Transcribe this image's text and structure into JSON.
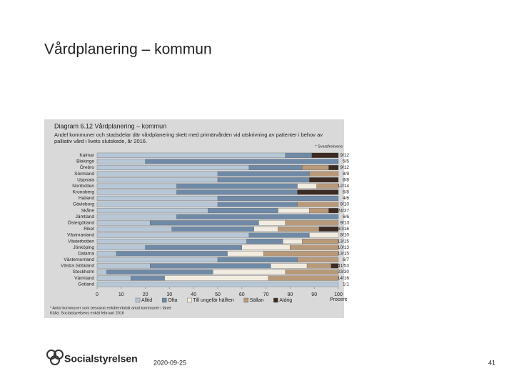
{
  "slide": {
    "title": "Vårdplanering – kommun",
    "logo_text": "Socialstyrelsen",
    "date": "2020-09-25",
    "page_number": "41"
  },
  "chart_data": {
    "type": "stacked-bar-horizontal",
    "title": "Diagram 6.12 Vårdplanering – kommun",
    "subtitle": "Andel kommuner och stadsdelar där vårdplanering skett med primärvården vid utskrivning av patienter i behov av palliativ vård i livets slutskede, år 2016.",
    "response_note": "* Svarsfrekvens",
    "categories": [
      "Kalmar",
      "Blekinge",
      "Örebro",
      "Sörmland",
      "Uppsala",
      "Norrbotten",
      "Kronoberg",
      "Halland",
      "Gävleborg",
      "Skåne",
      "Jämtland",
      "Östergötland",
      "Riket",
      "Västmanland",
      "Västerbotten",
      "Jönköping",
      "Dalarna",
      "Västernorrland",
      "Västra Götaland",
      "Stockholm",
      "Värmland",
      "Gotland"
    ],
    "response_rates": [
      "9/12",
      "5/5",
      "9/12",
      "8/9",
      "8/8",
      "12/14",
      "6/8",
      "4/6",
      "9/10",
      "24/37",
      "6/6",
      "9/13",
      "236/316",
      "8/10",
      "13/15",
      "10/13",
      "13/15",
      "6/7",
      "41/53",
      "23/30",
      "14/16",
      "1/1"
    ],
    "series": [
      {
        "name": "Alltid",
        "color": "#b8c7d6",
        "values": [
          78,
          20,
          63,
          50,
          50,
          33,
          33,
          50,
          50,
          46,
          33,
          22,
          31,
          63,
          62,
          20,
          8,
          50,
          22,
          4,
          14,
          100
        ]
      },
      {
        "name": "Ofta",
        "color": "#6f8aa6",
        "values": [
          11,
          80,
          22,
          38,
          38,
          50,
          50,
          50,
          33,
          29,
          67,
          45,
          34,
          25,
          15,
          40,
          46,
          33,
          50,
          44,
          14,
          0
        ]
      },
      {
        "name": "Till ungefär hälften",
        "color": "#f2ece0",
        "values": [
          0,
          0,
          0,
          0,
          0,
          8,
          0,
          0,
          0,
          13,
          0,
          11,
          10,
          12,
          8,
          20,
          15,
          0,
          15,
          30,
          43,
          0
        ]
      },
      {
        "name": "Sällan",
        "color": "#b89a7a",
        "values": [
          0,
          0,
          11,
          12,
          0,
          9,
          0,
          0,
          17,
          8,
          0,
          22,
          17,
          0,
          15,
          20,
          31,
          17,
          10,
          22,
          29,
          0
        ]
      },
      {
        "name": "Aldrig",
        "color": "#3b2b22",
        "values": [
          11,
          0,
          4,
          0,
          12,
          0,
          17,
          0,
          0,
          4,
          0,
          0,
          8,
          0,
          0,
          0,
          0,
          0,
          3,
          0,
          0,
          0
        ]
      }
    ],
    "xlim": [
      0,
      100
    ],
    "xticks": [
      0,
      10,
      20,
      30,
      40,
      50,
      60,
      70,
      80,
      90,
      100
    ],
    "xlabel": "Procent",
    "footnotes": [
      "* Antal kommuner som besvarat enkäten/totalt antal kommuner i länet",
      "Källa: Socialstyrelsens enkät februari 2016"
    ]
  }
}
